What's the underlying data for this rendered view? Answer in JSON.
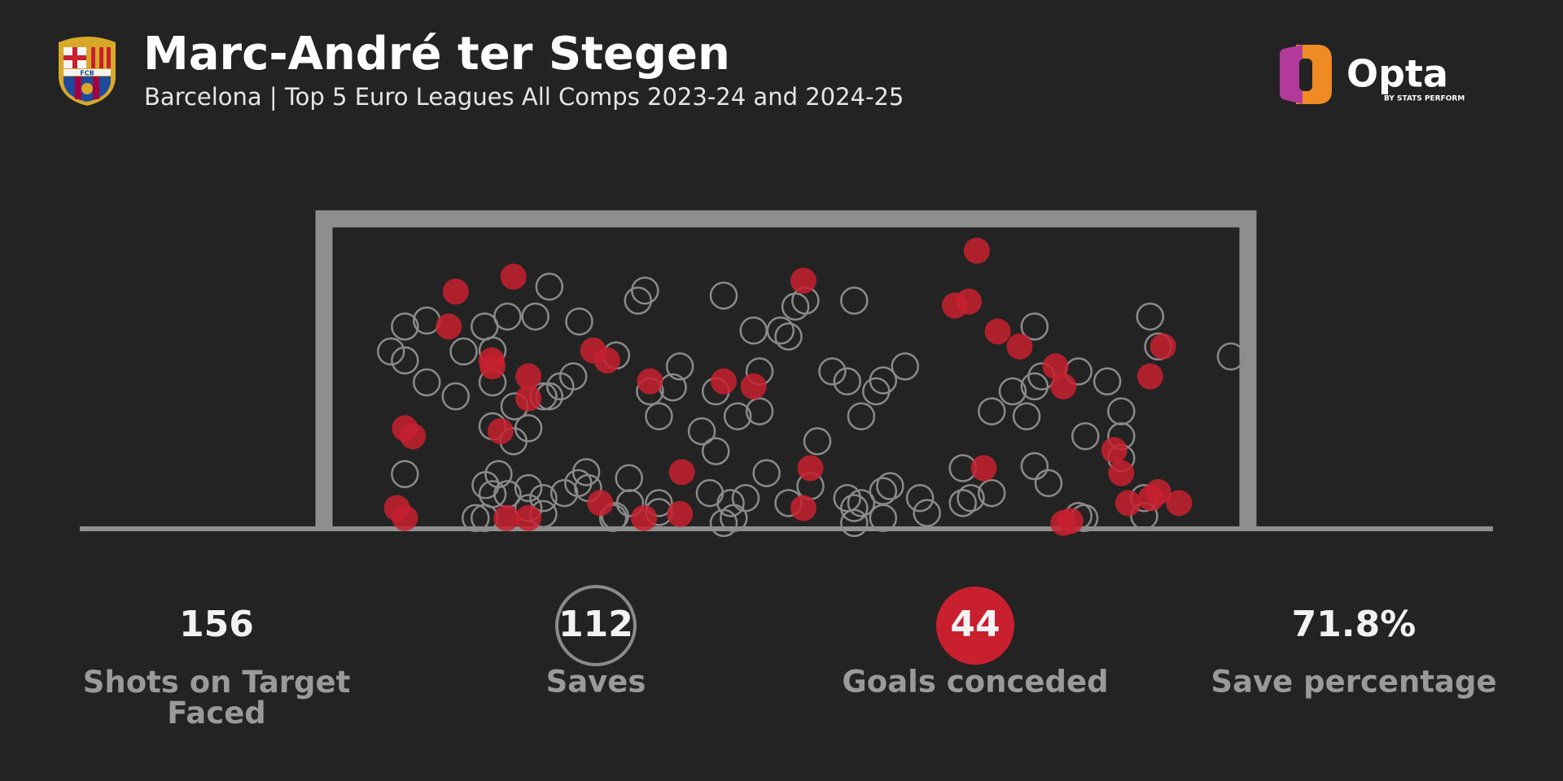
{
  "chart_data": {
    "type": "shot-map",
    "title": "Marc-André ter Stegen",
    "subtitle": "Barcelona | Top 5 Euro Leagues All Comps 2023-24 and 2024-25",
    "crest_text": "FCB",
    "brand": "Opta",
    "brand_tagline": "BY STATS PERFORM",
    "xlim": [
      0,
      911
    ],
    "ylim": [
      0,
      301
    ],
    "series": [
      {
        "style": "hollow",
        "color": "#8a8a8a",
        "x": [
          59,
          73,
          95,
          73,
          95,
          124,
          132,
          153,
          176,
          204,
          218,
          248,
          161,
          161,
          183,
          218,
          212,
          229,
          242,
          285,
          307,
          314,
          349,
          342,
          319,
          328,
          393,
          423,
          450,
          458,
          465,
          475,
          524,
          429,
          385,
          407,
          429,
          371,
          385,
          502,
          517,
          546,
          553,
          575,
          531,
          487,
          705,
          705,
          712,
          749,
          778,
          697,
          662,
          756,
          792,
          792,
          821,
          829,
          902,
          73,
          161,
          182,
          197,
          167,
          154,
          161,
          176,
          197,
          212,
          197,
          233,
          247,
          255,
          298,
          284,
          299,
          328,
          328,
          144,
          153,
          212,
          379,
          400,
          415,
          393,
          436,
          458,
          480,
          517,
          524,
          524,
          553,
          553,
          560,
          590,
          597,
          633,
          633,
          641,
          662,
          705,
          719,
          749,
          815,
          815,
          792,
          755,
          403,
          257,
          282,
          531,
          683
        ],
        "y": [
          177,
          202,
          208,
          168,
          146,
          132,
          177,
          202,
          212,
          212,
          242,
          207,
          146,
          178,
          122,
          132,
          132,
          142,
          152,
          173,
          228,
          238,
          162,
          141,
          137,
          112,
          233,
          198,
          198,
          192,
          222,
          228,
          228,
          157,
          137,
          112,
          117,
          97,
          77,
          157,
          147,
          137,
          148,
          162,
          112,
          87,
          202,
          142,
          152,
          157,
          147,
          112,
          117,
          92,
          117,
          92,
          212,
          182,
          172,
          54,
          102,
          87,
          100,
          54,
          43,
          34,
          34,
          40,
          30,
          20,
          35,
          45,
          56,
          50,
          12,
          25,
          25,
          16,
          10,
          10,
          14,
          35,
          25,
          30,
          5,
          55,
          25,
          42,
          30,
          20,
          5,
          10,
          37,
          42,
          30,
          15,
          60,
          25,
          30,
          35,
          62,
          45,
          12,
          12,
          30,
          70,
          10,
          10,
          40,
          10,
          25,
          137
        ]
      },
      {
        "style": "filled",
        "color": "#c8202f",
        "x": [
          124,
          182,
          117,
          160,
          161,
          197,
          197,
          73,
          81,
          169,
          65,
          73,
          175,
          197,
          269,
          313,
          349,
          351,
          262,
          276,
          319,
          393,
          423,
          473,
          480,
          473,
          647,
          625,
          639,
          668,
          690,
          726,
          734,
          821,
          834,
          654,
          785,
          792,
          799,
          829,
          822,
          850,
          734,
          741
        ],
        "y": [
          237,
          252,
          202,
          168,
          162,
          152,
          130,
          100,
          92,
          97,
          20,
          10,
          10,
          10,
          25,
          10,
          14,
          56,
          178,
          168,
          147,
          147,
          142,
          248,
          60,
          20,
          278,
          223,
          227,
          197,
          182,
          162,
          142,
          152,
          182,
          60,
          78,
          55,
          25,
          36,
          30,
          25,
          5,
          7
        ]
      }
    ],
    "stats": [
      {
        "value": 156,
        "label": "Shots on Target Faced"
      },
      {
        "value": 112,
        "label": "Saves",
        "badge": "hollow",
        "color": "#8a8a8a"
      },
      {
        "value": 44,
        "label": "Goals conceded",
        "badge": "filled",
        "color": "#c8202f"
      },
      {
        "value": 71.8,
        "value_label": "71.8%",
        "label": "Save percentage"
      }
    ]
  }
}
